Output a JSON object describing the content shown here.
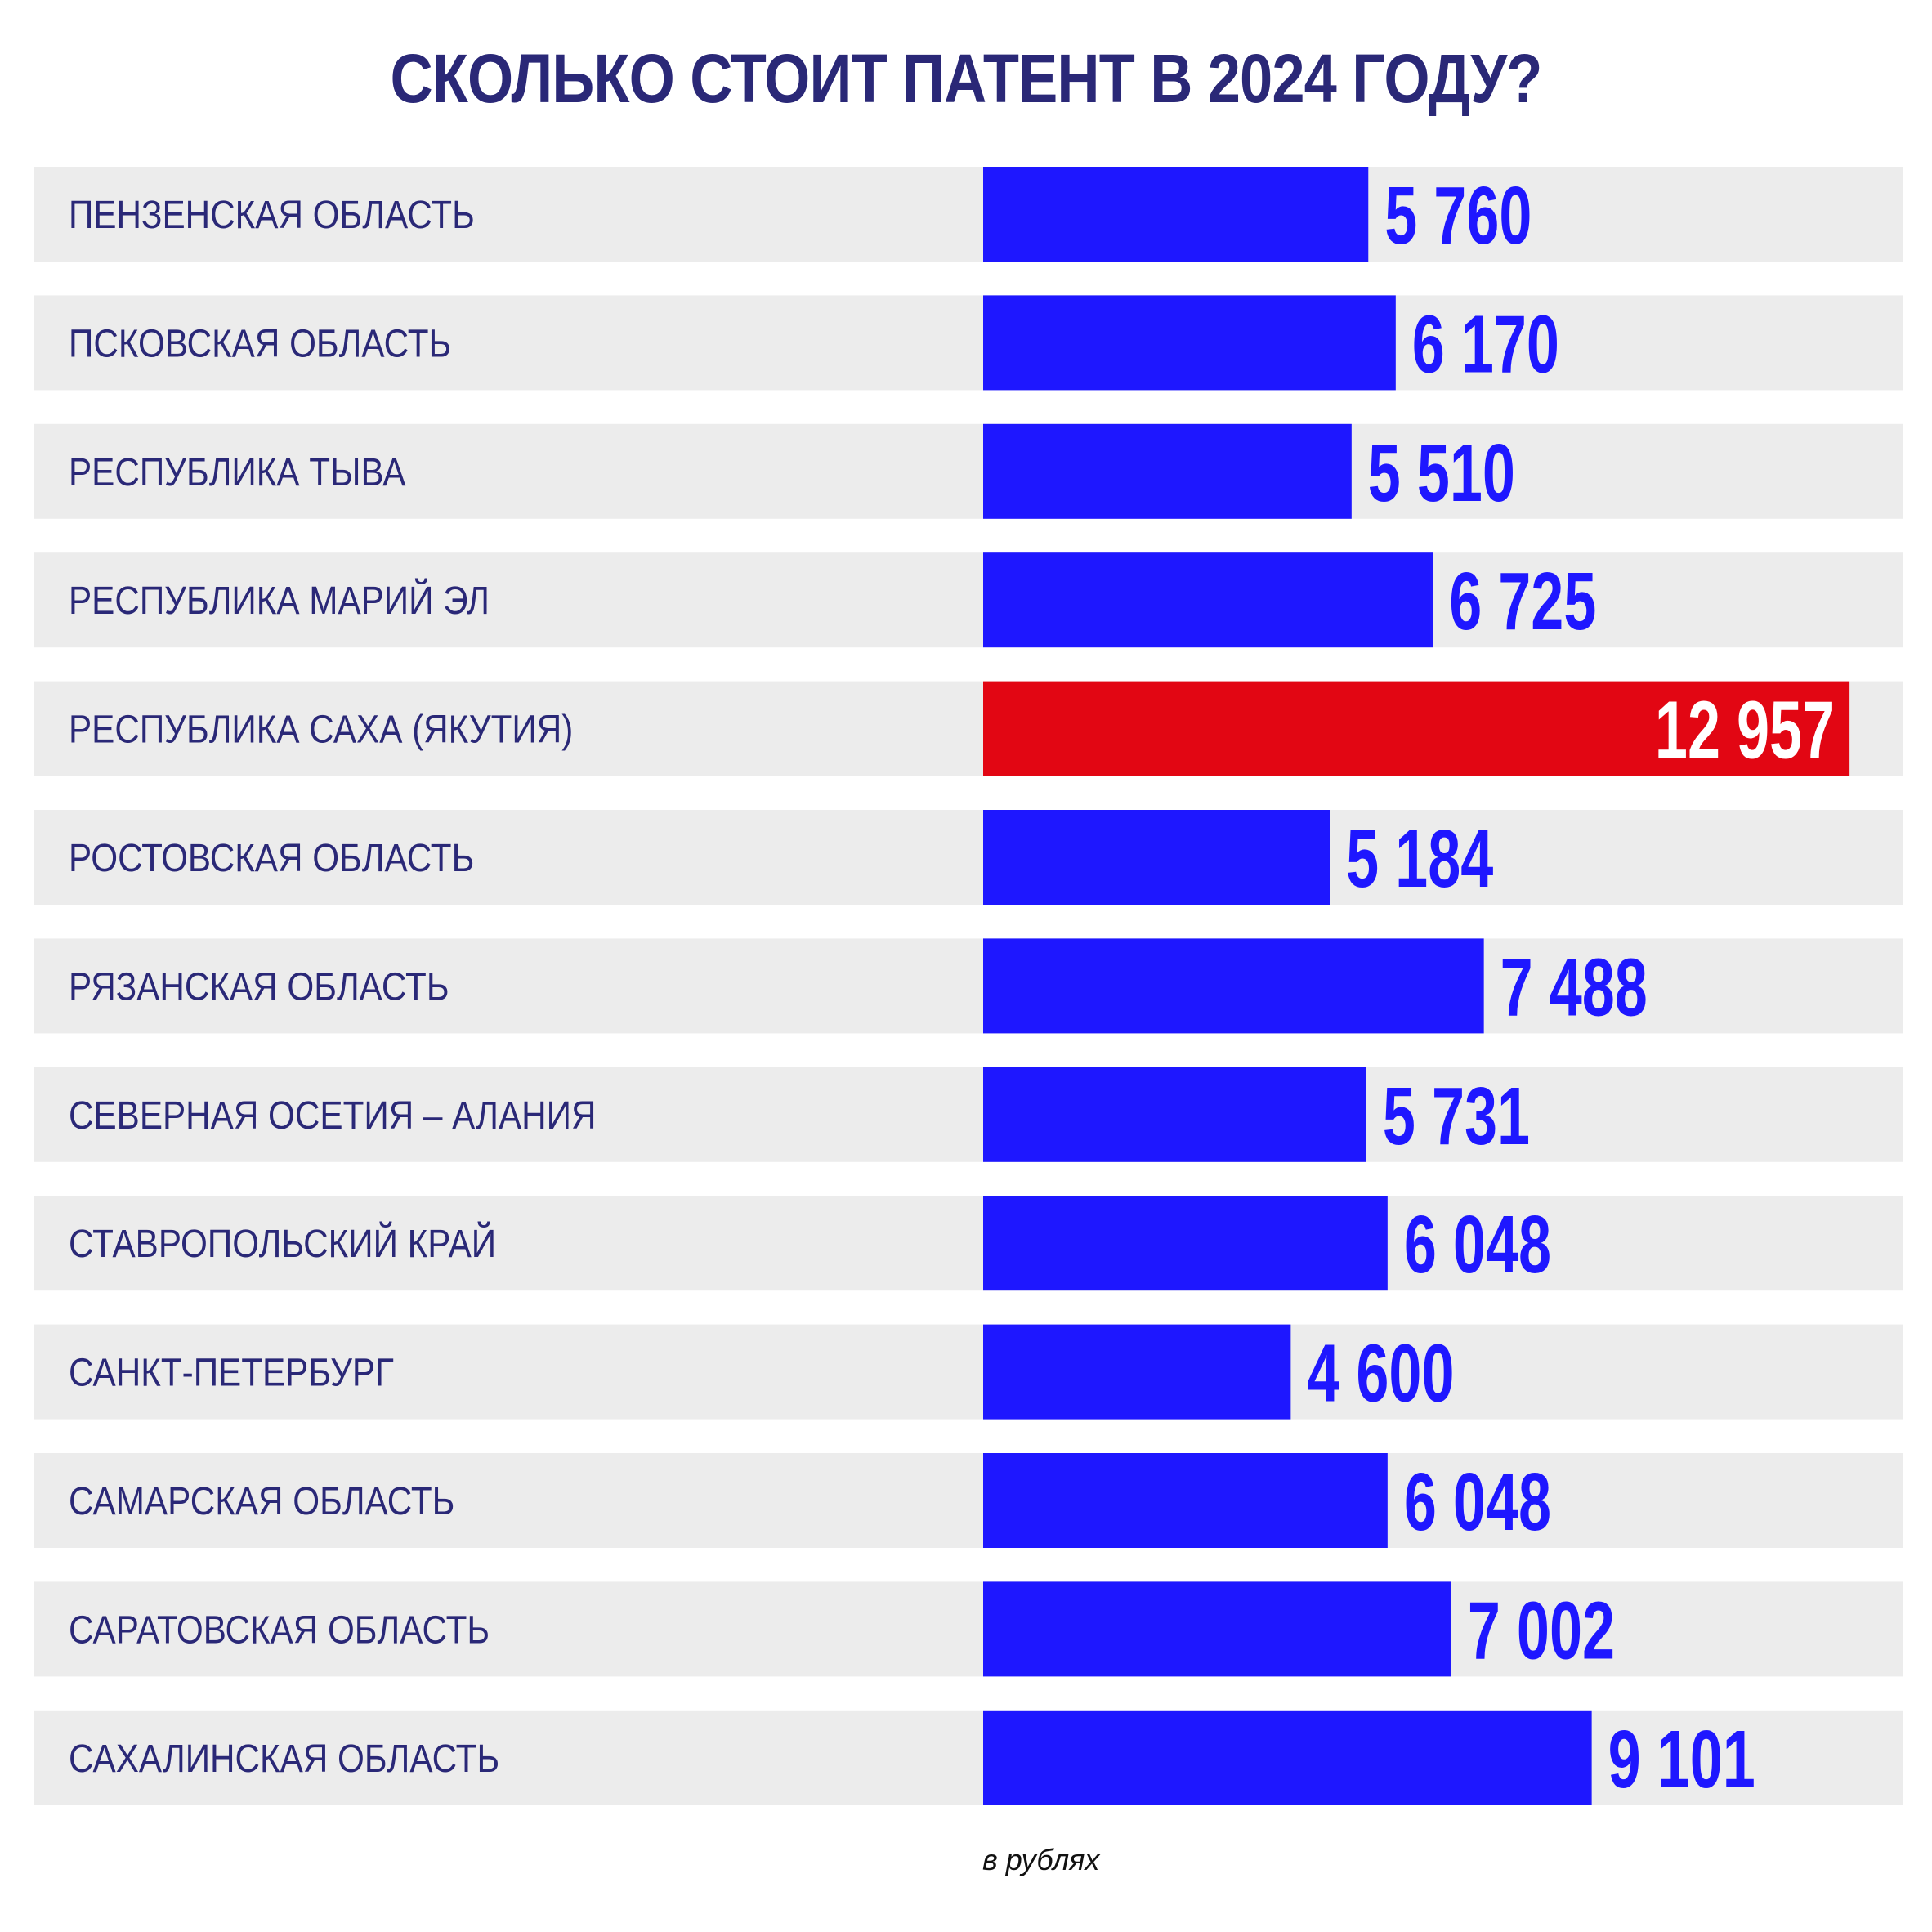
{
  "chart_data": {
    "type": "bar",
    "orientation": "horizontal",
    "title": "СКОЛЬКО СТОИТ ПАТЕНТ В 2024 ГОДУ?",
    "unit_note": "в рублях",
    "categories": [
      "ПЕНЗЕНСКАЯ ОБЛАСТЬ",
      "ПСКОВСКАЯ ОБЛАСТЬ",
      "РЕСПУБЛИКА ТЫВА",
      "РЕСПУБЛИКА МАРИЙ ЭЛ",
      "РЕСПУБЛИКА САХА (ЯКУТИЯ)",
      "РОСТОВСКАЯ ОБЛАСТЬ",
      "РЯЗАНСКАЯ ОБЛАСТЬ",
      "СЕВЕРНАЯ ОСЕТИЯ – АЛАНИЯ",
      "СТАВРОПОЛЬСКИЙ КРАЙ",
      "САНКТ-ПЕТЕРБУРГ",
      "САМАРСКАЯ ОБЛАСТЬ",
      "САРАТОВСКАЯ ОБЛАСТЬ",
      "САХАЛИНСКАЯ ОБЛАСТЬ"
    ],
    "values": [
      5760,
      6170,
      5510,
      6725,
      12957,
      5184,
      7488,
      5731,
      6048,
      4600,
      6048,
      7002,
      9101
    ],
    "value_labels": [
      "5 760",
      "6 170",
      "5 510",
      "6 725",
      "12 957",
      "5 184",
      "7 488",
      "5 731",
      "6 048",
      "4 600",
      "6 048",
      "7 002",
      "9 101"
    ],
    "highlight_index": 4,
    "xlim": [
      0,
      14300
    ],
    "grid": false,
    "legend": "none",
    "colors": {
      "bar": "#1e17ff",
      "highlight": "#e20613",
      "row_background": "#ececec",
      "category_text": "#2a2877",
      "title_text": "#2a2877"
    }
  }
}
